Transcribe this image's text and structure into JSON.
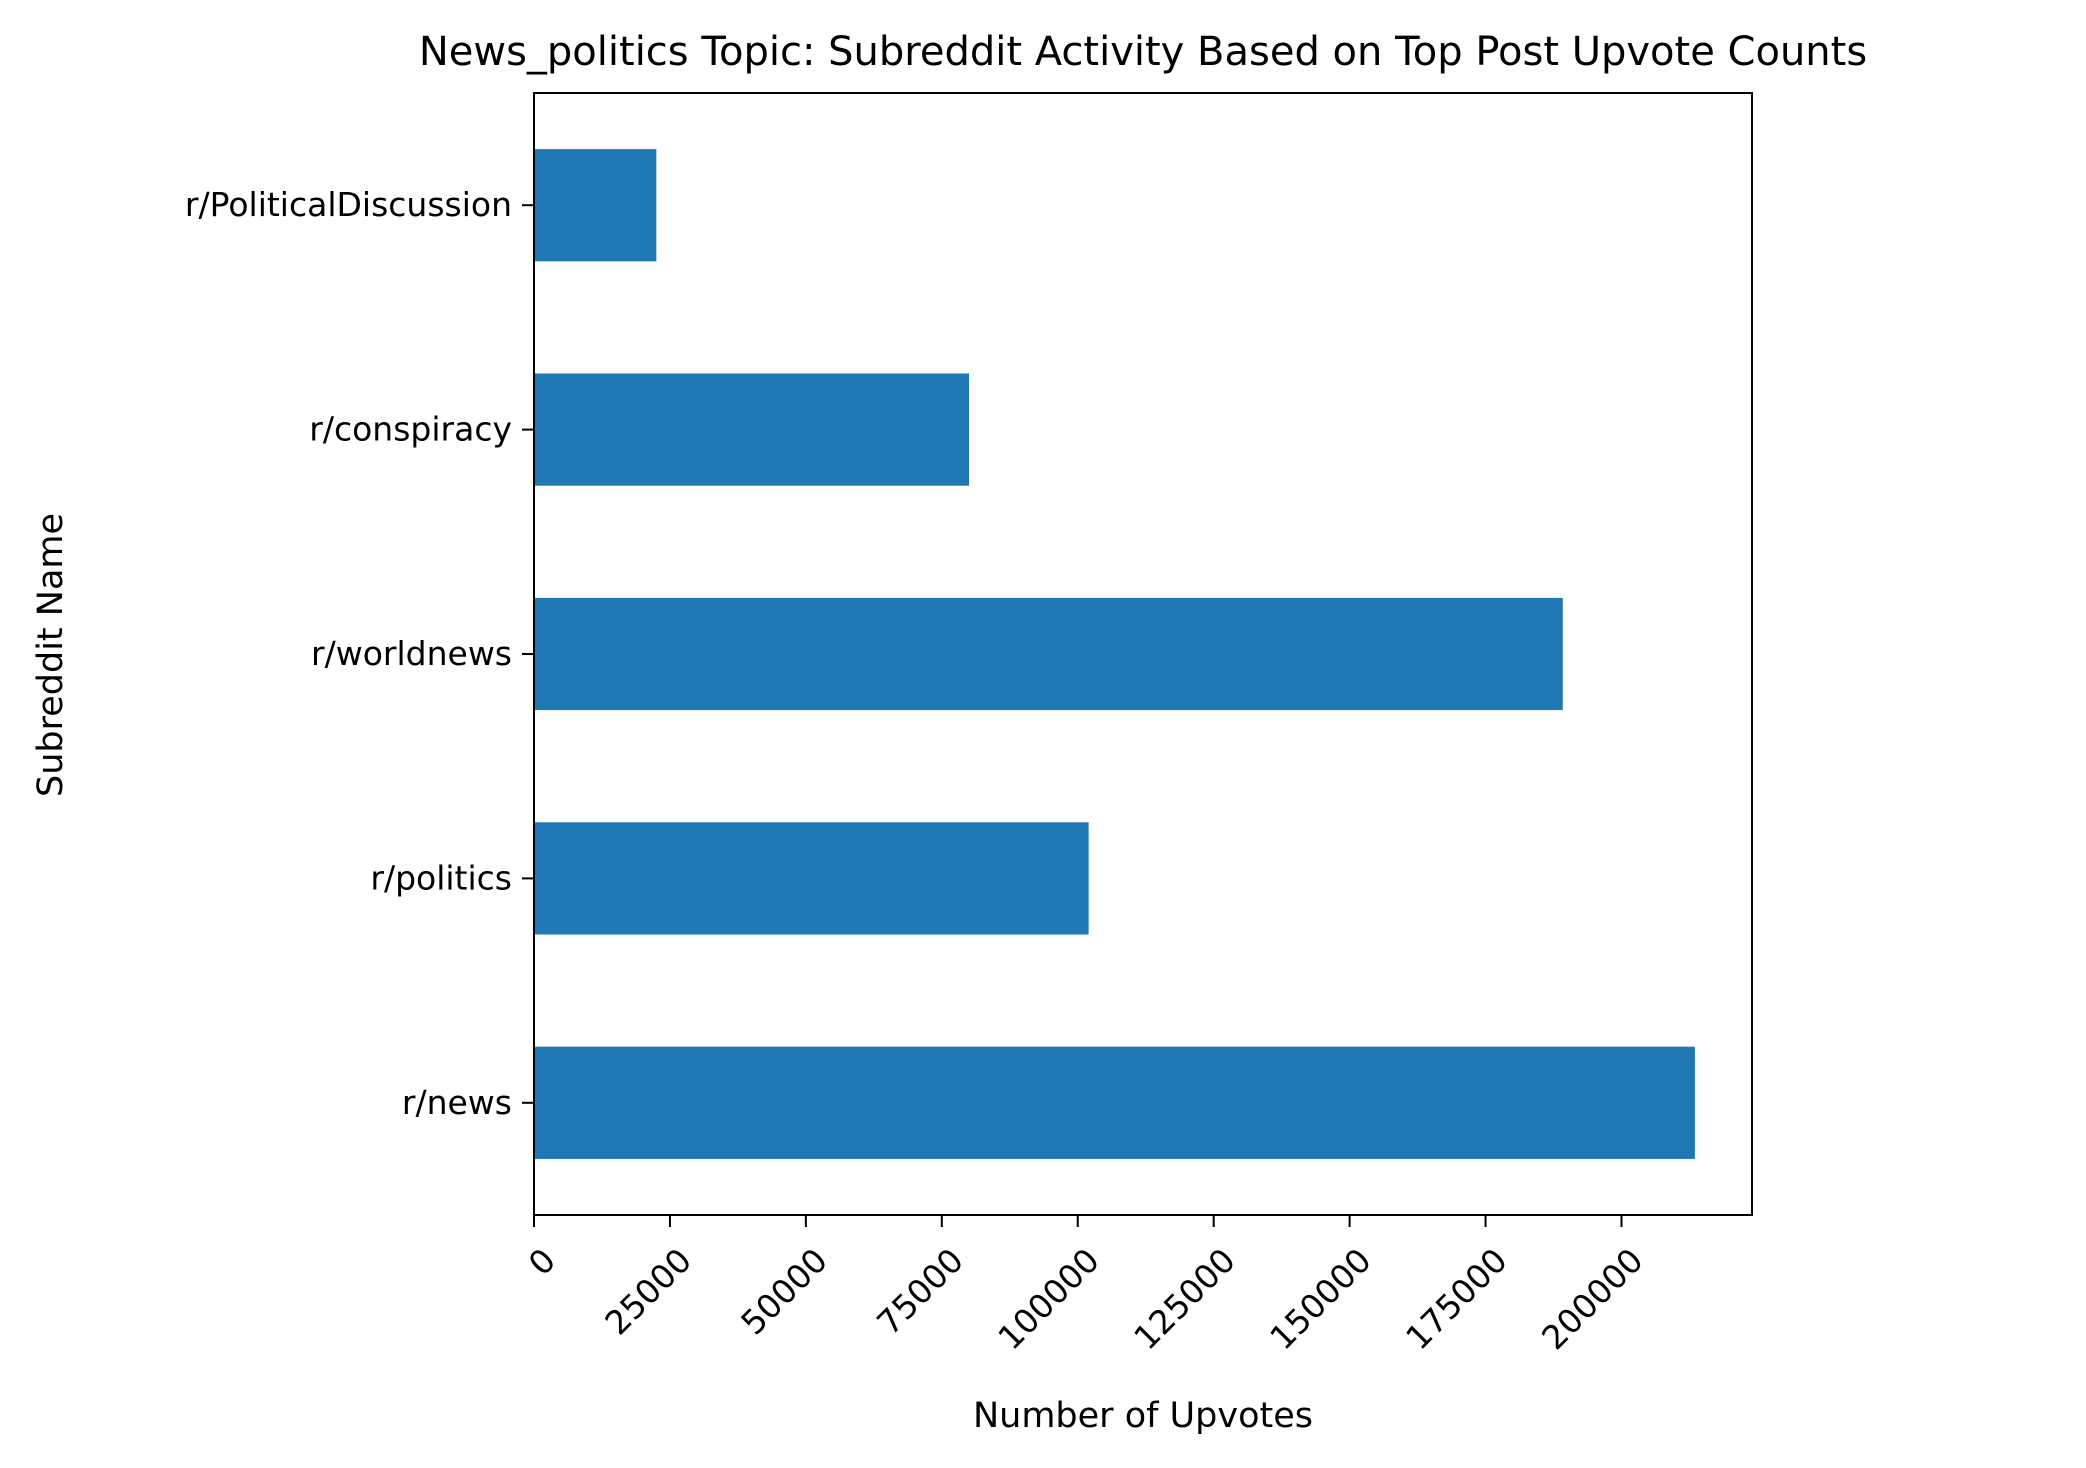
{
  "chart_data": {
    "type": "bar",
    "orientation": "horizontal",
    "title": "News_politics Topic: Subreddit Activity Based on Top Post Upvote Counts",
    "xlabel": "Number of Upvotes",
    "ylabel": "Subreddit Name",
    "categories": [
      "r/news",
      "r/politics",
      "r/worldnews",
      "r/conspiracy",
      "r/PoliticalDiscussion"
    ],
    "values": [
      213500,
      102000,
      189200,
      80000,
      22500
    ],
    "xlim": [
      0,
      224000
    ],
    "xticks": [
      0,
      25000,
      50000,
      75000,
      100000,
      125000,
      150000,
      175000,
      200000
    ],
    "xtick_labels": [
      "0",
      "25000",
      "50000",
      "75000",
      "100000",
      "125000",
      "150000",
      "175000",
      "200000"
    ],
    "xtick_rotation": 45,
    "bar_color": "#1f77b4",
    "grid": false,
    "legend": "none"
  }
}
